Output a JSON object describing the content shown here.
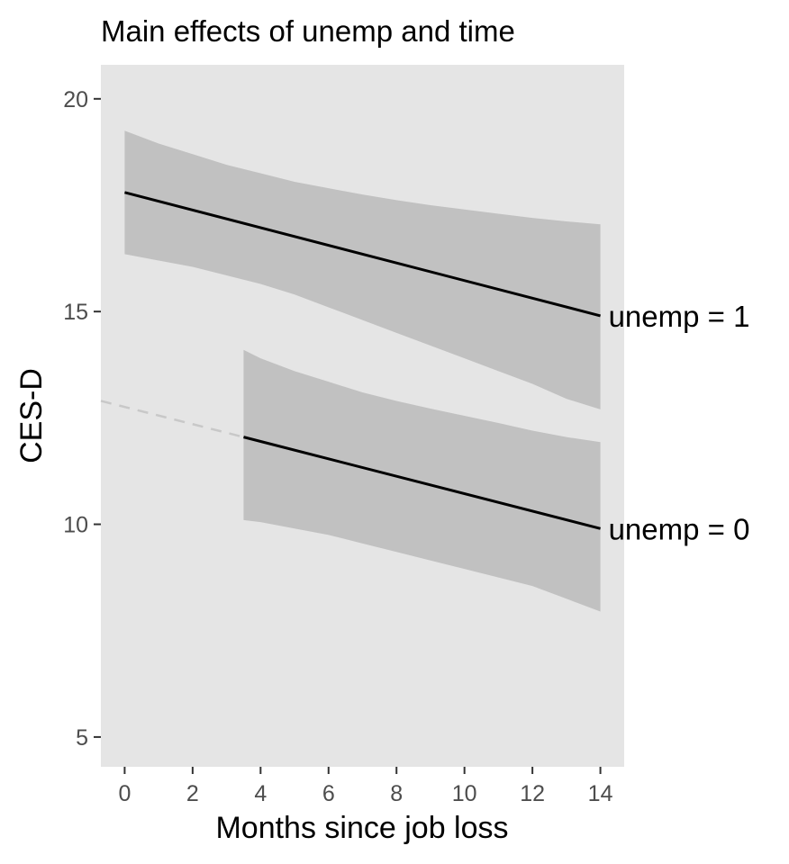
{
  "chart_data": {
    "type": "line",
    "title": "Main effects of unemp and time",
    "xlabel": "Months since job loss",
    "ylabel": "CES-D",
    "xlim": [
      -0.7,
      14.7
    ],
    "ylim": [
      4.3,
      20.8
    ],
    "xticks": [
      0,
      2,
      4,
      6,
      8,
      10,
      12,
      14
    ],
    "yticks": [
      5,
      10,
      15,
      20
    ],
    "grid": false,
    "legend": "none",
    "colors": {
      "panel_background": "#e5e5e5",
      "ribbon": "#c1c1c1",
      "line": "#000000",
      "extrapolation": "#c8c8c8",
      "tick_text": "#4d4d4d"
    },
    "series": [
      {
        "name": "unemp = 1",
        "x": [
          0,
          14
        ],
        "y": [
          17.8,
          14.9
        ],
        "ribbon_x": [
          0,
          1,
          2,
          3,
          4,
          5,
          6,
          7,
          8,
          9,
          10,
          11,
          12,
          13,
          14
        ],
        "ribbon_lower": [
          16.35,
          16.2,
          16.05,
          15.85,
          15.65,
          15.4,
          15.1,
          14.8,
          14.5,
          14.2,
          13.9,
          13.6,
          13.3,
          12.95,
          12.7
        ],
        "ribbon_upper": [
          19.25,
          18.95,
          18.7,
          18.45,
          18.25,
          18.05,
          17.9,
          17.75,
          17.62,
          17.5,
          17.4,
          17.3,
          17.2,
          17.12,
          17.05
        ]
      },
      {
        "name": "unemp = 0",
        "x": [
          3.5,
          14
        ],
        "y": [
          12.05,
          9.9
        ],
        "extrapolation_x": [
          -0.7,
          3.5
        ],
        "extrapolation_y": [
          12.9,
          12.05
        ],
        "ribbon_x": [
          3.5,
          4,
          5,
          6,
          7,
          8,
          9,
          10,
          11,
          12,
          13,
          14
        ],
        "ribbon_lower": [
          10.1,
          10.05,
          9.9,
          9.75,
          9.55,
          9.35,
          9.15,
          8.95,
          8.75,
          8.55,
          8.25,
          7.95
        ],
        "ribbon_upper": [
          14.1,
          13.9,
          13.6,
          13.35,
          13.1,
          12.9,
          12.72,
          12.55,
          12.38,
          12.2,
          12.05,
          11.93
        ]
      }
    ]
  }
}
